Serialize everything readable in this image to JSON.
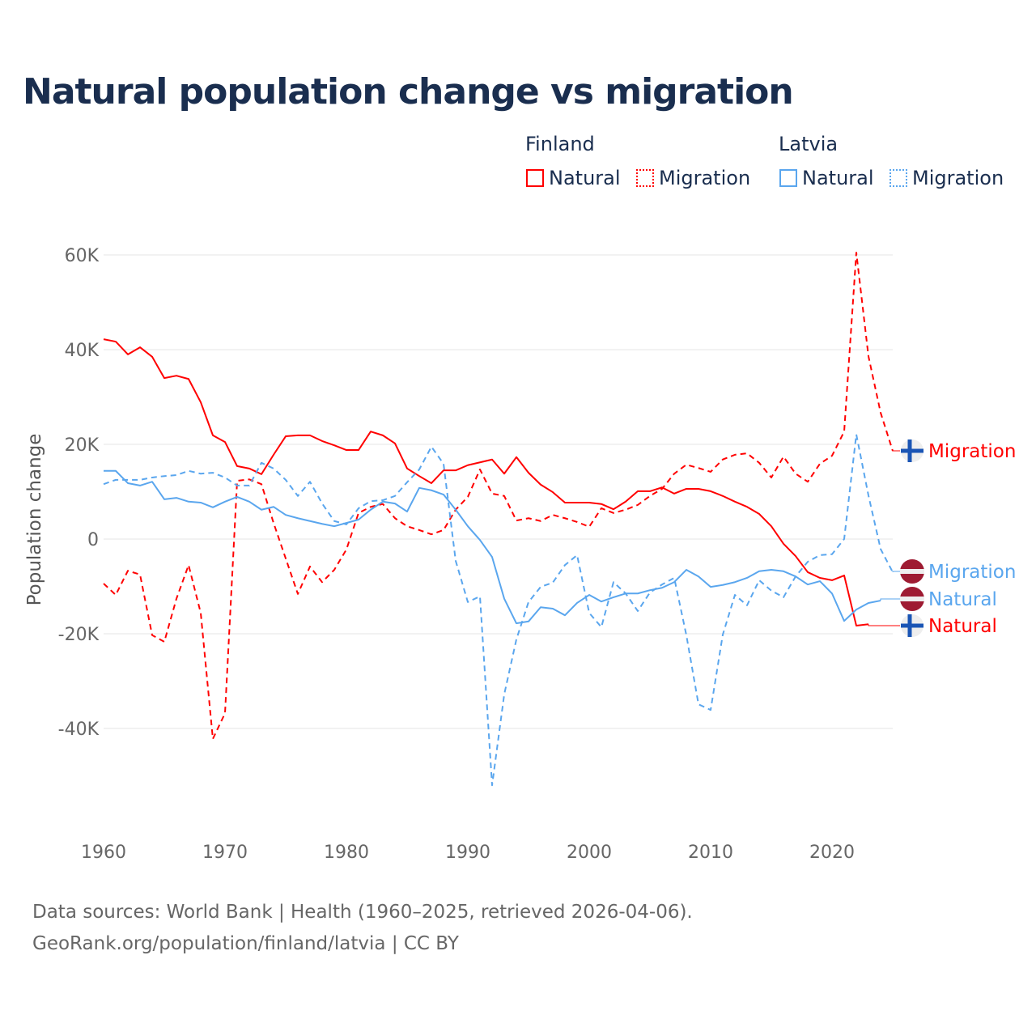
{
  "title": "Natural population change vs migration",
  "legend": {
    "groups": [
      {
        "name": "Finland",
        "color": "#ff0000",
        "items": [
          "Natural",
          "Migration"
        ]
      },
      {
        "name": "Latvia",
        "color": "#5aa6ee",
        "items": [
          "Natural",
          "Migration"
        ]
      }
    ]
  },
  "source": [
    "Data sources: World Bank | Health (1960–2025, retrieved 2026-04-06).",
    "GeoRank.org/population/finland/latvia | CC BY"
  ],
  "chart_data": {
    "type": "line",
    "title": "Natural population change vs migration",
    "xlabel": "",
    "ylabel": "Population change",
    "xlim": [
      1960,
      2025
    ],
    "ylim": [
      -55000,
      65000
    ],
    "xticks": [
      1960,
      1970,
      1980,
      1990,
      2000,
      2010,
      2020
    ],
    "yticks": [
      {
        "v": 60000,
        "l": "60K"
      },
      {
        "v": 40000,
        "l": "40K"
      },
      {
        "v": 20000,
        "l": "20K"
      },
      {
        "v": 0,
        "l": "0"
      },
      {
        "v": -20000,
        "l": "-20K"
      },
      {
        "v": -40000,
        "l": "-40K"
      }
    ],
    "start_year": 1960,
    "series": [
      {
        "name": "Finland Natural",
        "country": "Finland",
        "label": "Natural",
        "color": "#ff0000",
        "dash": false,
        "flag": "finland",
        "values": [
          42.2,
          41.7,
          39,
          40.5,
          38.5,
          34,
          34.5,
          33.8,
          28.9,
          21.9,
          20.5,
          15.4,
          14.9,
          13.7,
          17.8,
          21.7,
          21.9,
          21.9,
          20.7,
          19.8,
          18.8,
          18.8,
          22.7,
          21.9,
          20.2,
          14.9,
          13.3,
          11.8,
          14.5,
          14.5,
          15.6,
          16.2,
          16.8,
          13.8,
          17.3,
          14,
          11.5,
          9.9,
          7.7,
          7.7,
          7.7,
          7.4,
          6.3,
          7.9,
          10.1,
          10.1,
          10.9,
          9.6,
          10.6,
          10.6,
          10.1,
          9.1,
          7.9,
          6.8,
          5.3,
          2.7,
          -1,
          -3.6,
          -7,
          -8.2,
          -8.7,
          -7.7,
          -18.3,
          -18,
          null,
          null
        ]
      },
      {
        "name": "Finland Migration",
        "country": "Finland",
        "label": "Migration",
        "color": "#ff0000",
        "dash": true,
        "flag": "finland",
        "values": [
          -9.4,
          -11.8,
          -6.7,
          -7.5,
          -20.3,
          -21.7,
          -12.6,
          -5.5,
          -15.6,
          -42.2,
          -36.8,
          12.3,
          12.6,
          11.6,
          3.4,
          -4.1,
          -11.6,
          -5.8,
          -9.1,
          -6.5,
          -2.2,
          5.5,
          6.8,
          7.4,
          4.4,
          2.7,
          1.9,
          1,
          1.9,
          6.2,
          8.9,
          14.7,
          9.6,
          9.1,
          3.9,
          4.4,
          3.8,
          5.1,
          4.4,
          3.6,
          2.6,
          6.5,
          5.5,
          6.2,
          7.2,
          9.1,
          10.6,
          13.8,
          15.7,
          15,
          14.2,
          16.8,
          17.8,
          18.1,
          16.1,
          13,
          17.4,
          13.8,
          12.1,
          15.9,
          17.6,
          22.7,
          60.5,
          38.6,
          26.7,
          18.6
        ]
      },
      {
        "name": "Latvia Natural",
        "country": "Latvia",
        "label": "Natural",
        "color": "#5aa6ee",
        "dash": false,
        "flag": "latvia",
        "values": [
          14.4,
          14.4,
          11.8,
          11.3,
          12.1,
          8.4,
          8.7,
          7.9,
          7.7,
          6.7,
          7.9,
          8.9,
          7.9,
          6.2,
          6.8,
          5.1,
          4.4,
          3.8,
          3.2,
          2.7,
          3.4,
          4.1,
          6.2,
          7.9,
          7.5,
          5.8,
          10.8,
          10.3,
          9.4,
          6.2,
          2.7,
          -0.2,
          -3.8,
          -12.6,
          -17.8,
          -17.4,
          -14.4,
          -14.7,
          -16.1,
          -13.5,
          -11.8,
          -13.2,
          -12.3,
          -11.5,
          -11.5,
          -10.8,
          -10.3,
          -9.1,
          -6.5,
          -7.9,
          -10.1,
          -9.7,
          -9.1,
          -8.2,
          -6.8,
          -6.5,
          -6.8,
          -7.9,
          -9.6,
          -8.9,
          -11.5,
          -17.3,
          -14.9,
          -13.5,
          -13,
          null
        ]
      },
      {
        "name": "Latvia Migration",
        "country": "Latvia",
        "label": "Migration",
        "color": "#5aa6ee",
        "dash": true,
        "flag": "latvia",
        "values": [
          11.6,
          12.5,
          12.5,
          12.5,
          13,
          13.3,
          13.5,
          14.4,
          13.8,
          14,
          13,
          11.3,
          11.3,
          16.1,
          14.9,
          12.5,
          9.1,
          12.1,
          7.5,
          3.8,
          3.1,
          6.5,
          8,
          8.2,
          9.1,
          12,
          14.7,
          19.5,
          15.9,
          -4.6,
          -13.3,
          -12.1,
          -52,
          -32.8,
          -21.2,
          -13.3,
          -10.1,
          -9.2,
          -5.5,
          -3.4,
          -15.6,
          -18.6,
          -9.1,
          -11.5,
          -15.2,
          -11.3,
          -9.6,
          -8.2,
          -20.3,
          -34.9,
          -36.1,
          -20.2,
          -11.8,
          -14,
          -8.7,
          -10.9,
          -12.3,
          -7.9,
          -4.8,
          -3.4,
          -3.2,
          0,
          22.1,
          9.2,
          -2.1,
          -7
        ]
      }
    ],
    "values_unit": "thousands"
  }
}
